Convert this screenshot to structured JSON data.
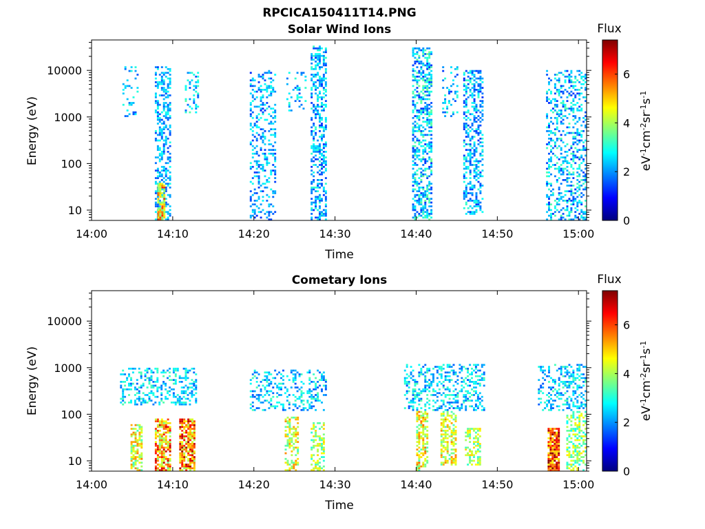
{
  "figure_title": "RPCICA150411T14.PNG",
  "colormap": [
    "#00007f",
    "#0000ff",
    "#007fff",
    "#00ffff",
    "#7fff7f",
    "#ffff00",
    "#ff7f00",
    "#ff0000",
    "#7f0000"
  ],
  "chart_data": [
    {
      "type": "heatmap",
      "title": "Solar Wind Ions",
      "xlabel": "Time",
      "ylabel": "Energy (eV)",
      "x_ticks": [
        "14:00",
        "14:10",
        "14:20",
        "14:30",
        "14:40",
        "14:50",
        "15:00"
      ],
      "x_range_minutes": [
        0,
        61
      ],
      "y_scale": "log",
      "y_ticks": [
        "10",
        "100",
        "1000",
        "10000"
      ],
      "y_range": [
        6,
        45000
      ],
      "colorbar": {
        "label": "Flux",
        "unit": "eV-1cm-2sr-1s-1",
        "ticks": [
          "0",
          "2",
          "4",
          "6"
        ],
        "range": [
          0,
          7.4
        ]
      },
      "clusters": [
        {
          "t0": 3.8,
          "t1": 5.8,
          "e_lo": 1000,
          "e_hi": 12000,
          "flux_lo": 1.3,
          "flux_hi": 3.2,
          "density": 0.22
        },
        {
          "t0": 7.8,
          "t1": 9.6,
          "e_lo": 6,
          "e_hi": 12000,
          "flux_lo": 1.4,
          "flux_hi": 3.0,
          "density": 0.45
        },
        {
          "t0": 8.1,
          "t1": 9.0,
          "e_lo": 6,
          "e_hi": 40,
          "flux_lo": 3.5,
          "flux_hi": 6.2,
          "density": 0.85
        },
        {
          "t0": 11.5,
          "t1": 13.2,
          "e_lo": 1100,
          "e_hi": 9000,
          "flux_lo": 1.5,
          "flux_hi": 3.4,
          "density": 0.3
        },
        {
          "t0": 19.5,
          "t1": 22.6,
          "e_lo": 6,
          "e_hi": 10000,
          "flux_lo": 1.2,
          "flux_hi": 3.0,
          "density": 0.3
        },
        {
          "t0": 24.0,
          "t1": 26.5,
          "e_lo": 1300,
          "e_hi": 9000,
          "flux_lo": 1.5,
          "flux_hi": 3.2,
          "density": 0.18
        },
        {
          "t0": 27.0,
          "t1": 29.0,
          "e_lo": 6,
          "e_hi": 35000,
          "flux_lo": 1.2,
          "flux_hi": 3.2,
          "density": 0.45
        },
        {
          "t0": 39.5,
          "t1": 41.8,
          "e_lo": 6,
          "e_hi": 30000,
          "flux_lo": 1.2,
          "flux_hi": 3.6,
          "density": 0.5
        },
        {
          "t0": 43.2,
          "t1": 45.2,
          "e_lo": 1000,
          "e_hi": 12000,
          "flux_lo": 1.3,
          "flux_hi": 3.2,
          "density": 0.25
        },
        {
          "t0": 45.8,
          "t1": 48.2,
          "e_lo": 8,
          "e_hi": 10000,
          "flux_lo": 1.2,
          "flux_hi": 3.2,
          "density": 0.4
        },
        {
          "t0": 56.0,
          "t1": 61.0,
          "e_lo": 6,
          "e_hi": 10000,
          "flux_lo": 1.2,
          "flux_hi": 3.4,
          "density": 0.35
        }
      ]
    },
    {
      "type": "heatmap",
      "title": "Cometary Ions",
      "xlabel": "Time",
      "ylabel": "Energy (eV)",
      "x_ticks": [
        "14:00",
        "14:10",
        "14:20",
        "14:30",
        "14:40",
        "14:50",
        "15:00"
      ],
      "x_range_minutes": [
        0,
        61
      ],
      "y_scale": "log",
      "y_ticks": [
        "10",
        "100",
        "1000",
        "10000"
      ],
      "y_range": [
        6,
        45000
      ],
      "colorbar": {
        "label": "Flux",
        "unit": "eV-1cm-2sr-1s-1",
        "ticks": [
          "0",
          "2",
          "4",
          "6"
        ],
        "range": [
          0,
          7.4
        ]
      },
      "clusters": [
        {
          "t0": 3.5,
          "t1": 13.0,
          "e_lo": 150,
          "e_hi": 1000,
          "flux_lo": 1.6,
          "flux_hi": 3.4,
          "density": 0.35
        },
        {
          "t0": 4.8,
          "t1": 6.2,
          "e_lo": 6,
          "e_hi": 60,
          "flux_lo": 3.2,
          "flux_hi": 5.6,
          "density": 0.6
        },
        {
          "t0": 7.8,
          "t1": 9.6,
          "e_lo": 6,
          "e_hi": 80,
          "flux_lo": 3.5,
          "flux_hi": 7.0,
          "density": 0.75
        },
        {
          "t0": 10.8,
          "t1": 12.8,
          "e_lo": 6,
          "e_hi": 80,
          "flux_lo": 3.8,
          "flux_hi": 7.2,
          "density": 0.75
        },
        {
          "t0": 19.5,
          "t1": 29.0,
          "e_lo": 120,
          "e_hi": 900,
          "flux_lo": 1.5,
          "flux_hi": 3.4,
          "density": 0.3
        },
        {
          "t0": 23.8,
          "t1": 25.5,
          "e_lo": 6,
          "e_hi": 90,
          "flux_lo": 3.2,
          "flux_hi": 5.5,
          "density": 0.5
        },
        {
          "t0": 27.0,
          "t1": 28.6,
          "e_lo": 6,
          "e_hi": 70,
          "flux_lo": 3.0,
          "flux_hi": 5.0,
          "density": 0.5
        },
        {
          "t0": 38.5,
          "t1": 48.5,
          "e_lo": 120,
          "e_hi": 1200,
          "flux_lo": 1.5,
          "flux_hi": 3.4,
          "density": 0.35
        },
        {
          "t0": 40.0,
          "t1": 41.4,
          "e_lo": 6,
          "e_hi": 120,
          "flux_lo": 3.2,
          "flux_hi": 5.8,
          "density": 0.6
        },
        {
          "t0": 43.0,
          "t1": 44.8,
          "e_lo": 8,
          "e_hi": 120,
          "flux_lo": 3.2,
          "flux_hi": 5.6,
          "density": 0.55
        },
        {
          "t0": 46.0,
          "t1": 48.0,
          "e_lo": 8,
          "e_hi": 50,
          "flux_lo": 3.0,
          "flux_hi": 5.0,
          "density": 0.45
        },
        {
          "t0": 55.0,
          "t1": 61.0,
          "e_lo": 120,
          "e_hi": 1200,
          "flux_lo": 1.5,
          "flux_hi": 3.4,
          "density": 0.35
        },
        {
          "t0": 56.2,
          "t1": 57.5,
          "e_lo": 6,
          "e_hi": 50,
          "flux_lo": 4.5,
          "flux_hi": 7.4,
          "density": 0.85
        },
        {
          "t0": 58.5,
          "t1": 61.0,
          "e_lo": 6,
          "e_hi": 120,
          "flux_lo": 2.8,
          "flux_hi": 4.8,
          "density": 0.45
        }
      ]
    }
  ]
}
